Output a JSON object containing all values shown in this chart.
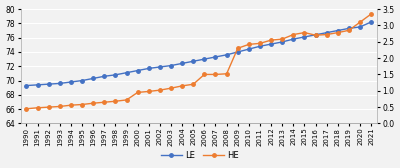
{
  "years": [
    1990,
    1991,
    1992,
    1993,
    1994,
    1995,
    1996,
    1997,
    1998,
    1999,
    2000,
    2001,
    2002,
    2003,
    2004,
    2005,
    2006,
    2007,
    2008,
    2009,
    2010,
    2011,
    2012,
    2013,
    2014,
    2015,
    2016,
    2017,
    2018,
    2019,
    2020,
    2021
  ],
  "LE": [
    69.3,
    69.4,
    69.5,
    69.6,
    69.8,
    70.0,
    70.3,
    70.6,
    70.8,
    71.1,
    71.4,
    71.7,
    71.9,
    72.1,
    72.4,
    72.7,
    73.0,
    73.3,
    73.6,
    74.0,
    74.4,
    74.8,
    75.1,
    75.4,
    75.8,
    76.1,
    76.4,
    76.7,
    77.0,
    77.3,
    77.5,
    78.2
  ],
  "HE": [
    0.45,
    0.48,
    0.5,
    0.52,
    0.56,
    0.58,
    0.62,
    0.65,
    0.68,
    0.72,
    0.95,
    0.98,
    1.02,
    1.08,
    1.15,
    1.2,
    1.5,
    1.5,
    1.52,
    2.3,
    2.42,
    2.45,
    2.55,
    2.58,
    2.72,
    2.78,
    2.7,
    2.72,
    2.78,
    2.85,
    3.1,
    3.35
  ],
  "LE_color": "#4472C4",
  "HE_color": "#ED7D31",
  "marker": "o",
  "markersize": 2.5,
  "linewidth": 1.0,
  "left_ylim": [
    64,
    80
  ],
  "right_ylim": [
    0,
    3.5
  ],
  "left_yticks": [
    64,
    66,
    68,
    70,
    72,
    74,
    76,
    78,
    80
  ],
  "right_yticks": [
    0,
    0.5,
    1.0,
    1.5,
    2.0,
    2.5,
    3.0,
    3.5
  ],
  "legend_labels": [
    "LE",
    "HE"
  ],
  "bg_color": "#f2f2f2",
  "plot_bg_color": "#f2f2f2",
  "grid_color": "#ffffff"
}
